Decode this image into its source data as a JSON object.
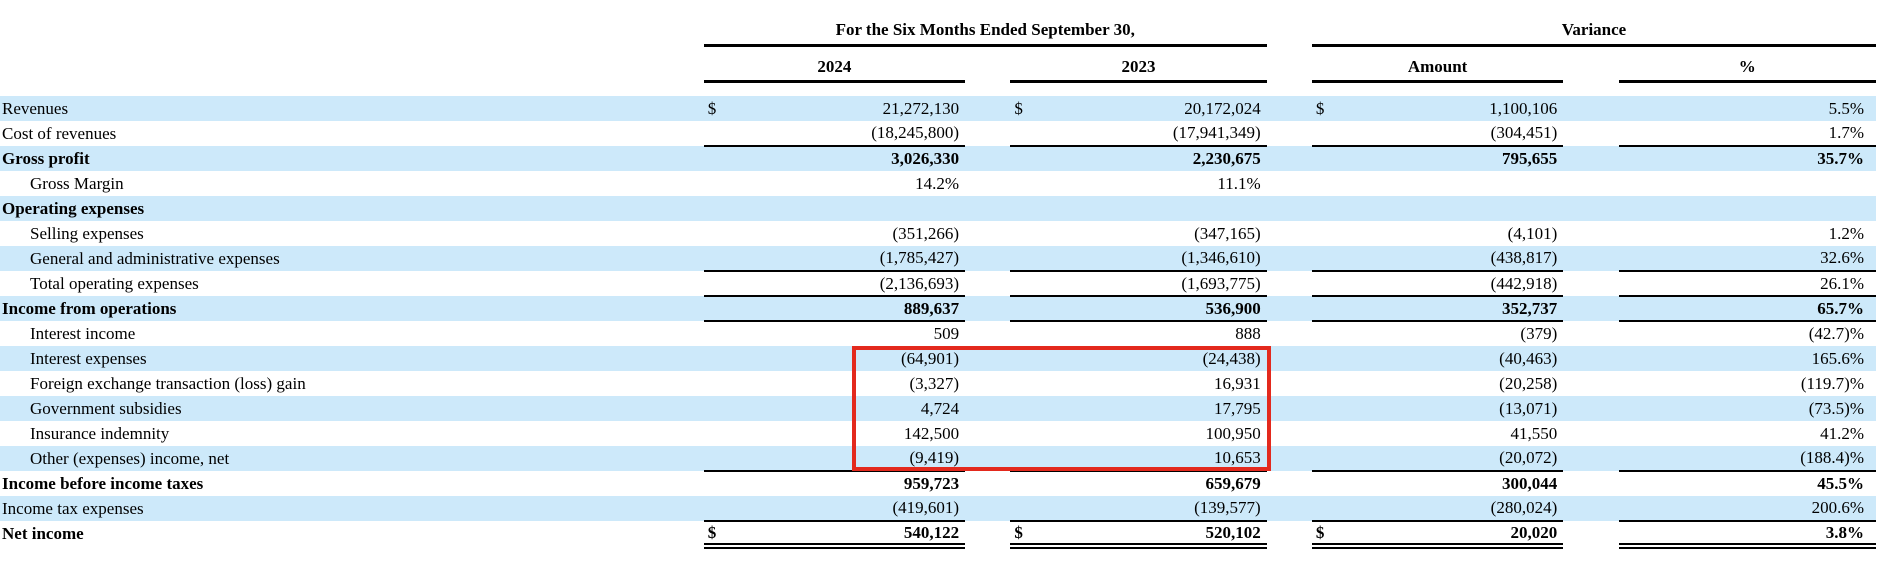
{
  "colors": {
    "row_shade": "#cde9fa",
    "rule": "#000000",
    "highlight_red": "#e3291d"
  },
  "table": {
    "header": {
      "period_group": "For the Six Months Ended September 30,",
      "variance_group": "Variance",
      "col_2024": "2024",
      "col_2023": "2023",
      "col_amount": "Amount",
      "col_percent": "%"
    },
    "rows": [
      {
        "label": "Revenues",
        "indent": false,
        "bold": false,
        "shaded": true,
        "d1": "$",
        "v1": "21,272,130",
        "d2": "$",
        "v2": "20,172,024",
        "d3": "$",
        "v3": "1,100,106",
        "pct": "5.5%",
        "rule": "none"
      },
      {
        "label": "Cost of revenues",
        "indent": false,
        "bold": false,
        "shaded": false,
        "d1": "",
        "v1": "(18,245,800)",
        "d2": "",
        "v2": "(17,941,349)",
        "d3": "",
        "v3": "(304,451)",
        "pct": "1.7%",
        "rule": "single"
      },
      {
        "label": "Gross profit",
        "indent": false,
        "bold": true,
        "shaded": true,
        "d1": "",
        "v1": "3,026,330",
        "d2": "",
        "v2": "2,230,675",
        "d3": "",
        "v3": "795,655",
        "pct": "35.7%",
        "rule": "none"
      },
      {
        "label": "Gross Margin",
        "indent": true,
        "bold": false,
        "shaded": false,
        "d1": "",
        "v1": "14.2%",
        "d2": "",
        "v2": "11.1%",
        "d3": "",
        "v3": "",
        "pct": "",
        "rule": "none"
      },
      {
        "label": "Operating expenses",
        "indent": false,
        "bold": true,
        "shaded": true,
        "d1": "",
        "v1": "",
        "d2": "",
        "v2": "",
        "d3": "",
        "v3": "",
        "pct": "",
        "rule": "none"
      },
      {
        "label": "Selling expenses",
        "indent": true,
        "bold": false,
        "shaded": false,
        "d1": "",
        "v1": "(351,266)",
        "d2": "",
        "v2": "(347,165)",
        "d3": "",
        "v3": "(4,101)",
        "pct": "1.2%",
        "rule": "none"
      },
      {
        "label": "General and administrative expenses",
        "indent": true,
        "bold": false,
        "shaded": true,
        "d1": "",
        "v1": "(1,785,427)",
        "d2": "",
        "v2": "(1,346,610)",
        "d3": "",
        "v3": "(438,817)",
        "pct": "32.6%",
        "rule": "single"
      },
      {
        "label": "Total operating expenses",
        "indent": true,
        "bold": false,
        "shaded": false,
        "d1": "",
        "v1": "(2,136,693)",
        "d2": "",
        "v2": "(1,693,775)",
        "d3": "",
        "v3": "(442,918)",
        "pct": "26.1%",
        "rule": "single"
      },
      {
        "label": "Income from operations",
        "indent": false,
        "bold": true,
        "shaded": true,
        "d1": "",
        "v1": "889,637",
        "d2": "",
        "v2": "536,900",
        "d3": "",
        "v3": "352,737",
        "pct": "65.7%",
        "rule": "single"
      },
      {
        "label": "Interest income",
        "indent": true,
        "bold": false,
        "shaded": false,
        "d1": "",
        "v1": "509",
        "d2": "",
        "v2": "888",
        "d3": "",
        "v3": "(379)",
        "pct": "(42.7)%",
        "rule": "none"
      },
      {
        "label": "Interest expenses",
        "indent": true,
        "bold": false,
        "shaded": true,
        "d1": "",
        "v1": "(64,901)",
        "d2": "",
        "v2": "(24,438)",
        "d3": "",
        "v3": "(40,463)",
        "pct": "165.6%",
        "rule": "none"
      },
      {
        "label": "Foreign exchange transaction (loss) gain",
        "indent": true,
        "bold": false,
        "shaded": false,
        "d1": "",
        "v1": "(3,327)",
        "d2": "",
        "v2": "16,931",
        "d3": "",
        "v3": "(20,258)",
        "pct": "(119.7)%",
        "rule": "none"
      },
      {
        "label": "Government subsidies",
        "indent": true,
        "bold": false,
        "shaded": true,
        "d1": "",
        "v1": "4,724",
        "d2": "",
        "v2": "17,795",
        "d3": "",
        "v3": "(13,071)",
        "pct": "(73.5)%",
        "rule": "none"
      },
      {
        "label": "Insurance indemnity",
        "indent": true,
        "bold": false,
        "shaded": false,
        "d1": "",
        "v1": "142,500",
        "d2": "",
        "v2": "100,950",
        "d3": "",
        "v3": "41,550",
        "pct": "41.2%",
        "rule": "none"
      },
      {
        "label": "Other (expenses) income, net",
        "indent": true,
        "bold": false,
        "shaded": true,
        "d1": "",
        "v1": "(9,419)",
        "d2": "",
        "v2": "10,653",
        "d3": "",
        "v3": "(20,072)",
        "pct": "(188.4)%",
        "rule": "single"
      },
      {
        "label": "Income before income taxes",
        "indent": false,
        "bold": true,
        "shaded": false,
        "d1": "",
        "v1": "959,723",
        "d2": "",
        "v2": "659,679",
        "d3": "",
        "v3": "300,044",
        "pct": "45.5%",
        "rule": "none"
      },
      {
        "label": "Income tax expenses",
        "indent": false,
        "bold": false,
        "shaded": true,
        "d1": "",
        "v1": "(419,601)",
        "d2": "",
        "v2": "(139,577)",
        "d3": "",
        "v3": "(280,024)",
        "pct": "200.6%",
        "rule": "single"
      },
      {
        "label": "Net income",
        "indent": false,
        "bold": true,
        "shaded": false,
        "d1": "$",
        "v1": "540,122",
        "d2": "$",
        "v2": "520,102",
        "d3": "$",
        "v3": "20,020",
        "pct": "3.8%",
        "rule": "double"
      }
    ]
  }
}
